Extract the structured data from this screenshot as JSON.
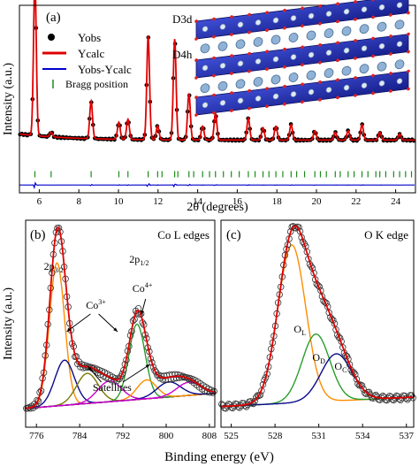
{
  "chart_data": [
    {
      "panel": "(a)",
      "type": "line",
      "title": "",
      "xlabel": "2θ (degrees)",
      "ylabel": "Intensity (a.u.)",
      "xlim": [
        5,
        25
      ],
      "ylim": [
        -0.16,
        1.05
      ],
      "xticks": [
        6,
        8,
        10,
        12,
        14,
        16,
        18,
        20,
        22,
        24
      ],
      "legend": [
        "Yobs",
        "Ycalc",
        "Yobs-Ycalc",
        "Bragg position"
      ],
      "legend_position": "top-left",
      "colors": {
        "obs": "#000000",
        "calc": "#e00000",
        "diff": "#0000cc",
        "bragg": "#1a8a1a"
      },
      "baseline": 0.18,
      "peaks": [
        {
          "x": 5.78,
          "h": 1.0
        },
        {
          "x": 6.6,
          "h": 0.03
        },
        {
          "x": 8.62,
          "h": 0.24
        },
        {
          "x": 10.02,
          "h": 0.11
        },
        {
          "x": 10.48,
          "h": 0.13
        },
        {
          "x": 11.5,
          "h": 0.67
        },
        {
          "x": 11.98,
          "h": 0.09
        },
        {
          "x": 12.84,
          "h": 0.65
        },
        {
          "x": 13.56,
          "h": 0.3
        },
        {
          "x": 14.25,
          "h": 0.09
        },
        {
          "x": 14.9,
          "h": 0.17
        },
        {
          "x": 16.56,
          "h": 0.14
        },
        {
          "x": 17.3,
          "h": 0.08
        },
        {
          "x": 17.95,
          "h": 0.09
        },
        {
          "x": 18.72,
          "h": 0.1
        },
        {
          "x": 19.92,
          "h": 0.06
        },
        {
          "x": 20.95,
          "h": 0.05
        },
        {
          "x": 21.6,
          "h": 0.06
        },
        {
          "x": 22.3,
          "h": 0.1
        },
        {
          "x": 23.2,
          "h": 0.05
        },
        {
          "x": 24.2,
          "h": 0.04
        }
      ],
      "bragg_positions": [
        5.78,
        6.6,
        8.62,
        10.02,
        10.48,
        11.5,
        11.98,
        12.2,
        12.84,
        13.0,
        13.56,
        13.8,
        14.25,
        14.6,
        14.9,
        15.3,
        15.7,
        16.1,
        16.56,
        16.9,
        17.3,
        17.6,
        17.95,
        18.3,
        18.72,
        19.0,
        19.4,
        19.92,
        20.2,
        20.5,
        20.95,
        21.2,
        21.6,
        21.9,
        22.3,
        22.6,
        23.0,
        23.2,
        23.5,
        23.9,
        24.2,
        24.5,
        24.8
      ],
      "structure_labels": [
        "D3d",
        "D4h"
      ]
    },
    {
      "panel": "(b)",
      "type": "line",
      "title": "Co L edges",
      "xlabel": "Binding energy (eV)",
      "ylabel": "Intensity (a.u.)",
      "xlim": [
        774,
        809
      ],
      "ylim": [
        -0.05,
        1.05
      ],
      "xticks": [
        776,
        784,
        792,
        800,
        808
      ],
      "annotations": [
        "2p3/2",
        "2p1/2",
        "Co3+",
        "Co4+",
        "Satellites"
      ],
      "background": {
        "low": 0.05,
        "high": 0.13
      },
      "components": [
        {
          "center": 779.8,
          "height": 0.76,
          "width": 1.4,
          "color": "#ff8c00"
        },
        {
          "center": 781.2,
          "height": 0.24,
          "width": 1.8,
          "color": "#0a0a8a"
        },
        {
          "center": 785.4,
          "height": 0.16,
          "width": 2.0,
          "color": "#7a7a00"
        },
        {
          "center": 789.5,
          "height": 0.11,
          "width": 2.2,
          "color": "#cc00cc"
        },
        {
          "center": 794.6,
          "height": 0.4,
          "width": 1.5,
          "color": "#2a9d2a"
        },
        {
          "center": 796.4,
          "height": 0.1,
          "width": 1.8,
          "color": "#ff8c00"
        },
        {
          "center": 800.5,
          "height": 0.08,
          "width": 2.2,
          "color": "#0a0a8a"
        },
        {
          "center": 804.2,
          "height": 0.07,
          "width": 2.2,
          "color": "#cc00cc"
        }
      ]
    },
    {
      "panel": "(c)",
      "type": "line",
      "title": "O K edge",
      "xlabel": "Binding energy (eV)",
      "ylabel": "",
      "xlim": [
        524.3,
        537.5
      ],
      "ylim": [
        -0.05,
        1.05
      ],
      "xticks": [
        525,
        528,
        531,
        534,
        537
      ],
      "annotations": [
        "OL",
        "OD",
        "OC"
      ],
      "background": {
        "low": 0.06,
        "high": 0.11
      },
      "components": [
        {
          "center": 529.15,
          "height": 0.84,
          "width": 0.95,
          "color": "#ff8c00"
        },
        {
          "center": 530.8,
          "height": 0.36,
          "width": 0.95,
          "color": "#2a9d2a"
        },
        {
          "center": 532.2,
          "height": 0.25,
          "width": 1.05,
          "color": "#0a0a8a"
        }
      ]
    }
  ]
}
